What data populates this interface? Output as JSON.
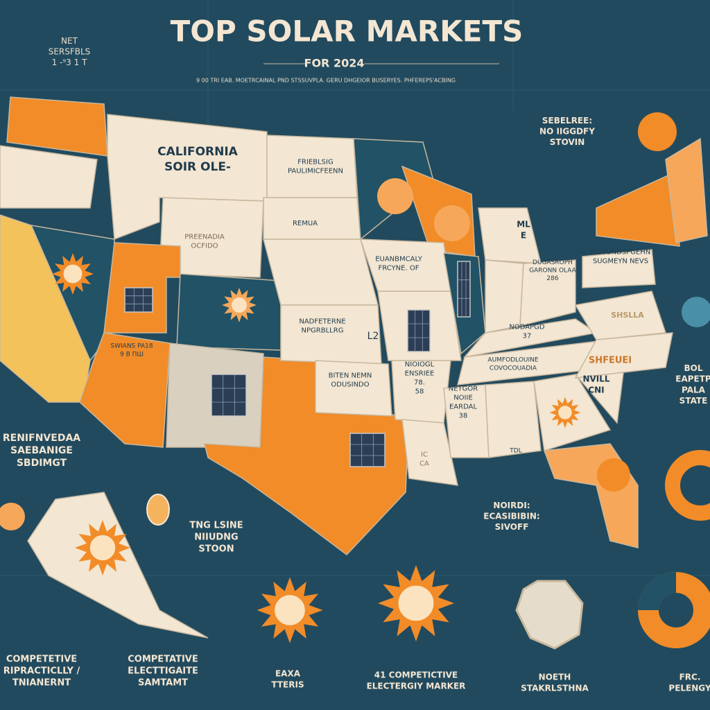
{
  "header": {
    "title": "TOP SOLAR MARKETS",
    "subtitle": "FOR 2024",
    "tagline": "9   00   TRI EAB. MOETRCAINAL PND STSSUVPLA. GERU DHGEIOR BUSERYES. PHFEREPS'ACBING"
  },
  "labels": [
    {
      "lines": [
        "NET",
        "SERSFBLS",
        "1 -⁹3 1 T"
      ]
    },
    {
      "lines": [
        "CALIFORNIA",
        "SOIR OLE-"
      ]
    },
    {
      "lines": [
        "FRIEBLSIG",
        "PAULIMICFEENN"
      ]
    },
    {
      "lines": [
        "REMUA"
      ]
    },
    {
      "lines": [
        "PREENADIA",
        "OCFIDO"
      ]
    },
    {
      "lines": [
        "EUANBMCALY",
        "FRCYNE. OF"
      ]
    },
    {
      "lines": [
        "ML",
        "E"
      ]
    },
    {
      "lines": [
        "DUGASROPH",
        "GARONN OLAA",
        "286"
      ]
    },
    {
      "lines": [
        "ROOUNDSPGEHN",
        "SUGMEYN NEVS"
      ]
    },
    {
      "lines": [
        "NODAPGD",
        "37"
      ]
    },
    {
      "lines": [
        "SHSLLA"
      ]
    },
    {
      "lines": [
        "AUMFODLOUINE",
        "COVOCOUADIA"
      ]
    },
    {
      "lines": [
        "SHFEUEI"
      ]
    },
    {
      "lines": [
        "NVILL",
        "CNI"
      ]
    },
    {
      "lines": [
        "NETGOR",
        "NOIIE",
        "EARDAL",
        "38"
      ]
    },
    {
      "lines": [
        "TDL"
      ]
    },
    {
      "lines": [
        "BITEN NEMN",
        "ODUSINDO"
      ]
    },
    {
      "lines": [
        "NIOIOGL",
        "ENSRIEE",
        "78.",
        "58"
      ]
    },
    {
      "lines": [
        "NADFETERNE",
        "NPGRBLLRG"
      ]
    },
    {
      "lines": [
        "L2"
      ]
    },
    {
      "lines": [
        "SWIANS PA18",
        "9 B ПШ"
      ]
    },
    {
      "lines": [
        "IC",
        "CA"
      ]
    },
    {
      "lines": [
        "SEBELREE:",
        "NO IIGGDFY",
        "STOVIN"
      ]
    },
    {
      "lines": [
        "BOL",
        "EAPETP",
        "PALA",
        "STATE"
      ]
    },
    {
      "lines": [
        "RENIFNVEDAA",
        "SAEBANIGE",
        "SBDIMGT"
      ]
    },
    {
      "lines": [
        "TNG LSINE",
        "NIIUDNG",
        "STOON"
      ]
    },
    {
      "lines": [
        "NOIRDI:",
        "ECASIBIBIN:",
        "SIVOFF"
      ]
    },
    {
      "lines": [
        "COMPETETIVE",
        "RIPRACTICLLY /",
        "TNIANERNT"
      ]
    },
    {
      "lines": [
        "COMPETATIVE",
        "ELECTTIGAITE",
        "SAMTAMT"
      ]
    },
    {
      "lines": [
        "EAXA",
        "TTERIS"
      ]
    },
    {
      "lines": [
        "41 COMPETICTIVE",
        "ELECTERGIY MARKER"
      ]
    },
    {
      "lines": [
        "NOETH",
        "STAKRLSTHNA"
      ]
    },
    {
      "lines": [
        "FRC.",
        "PELENGY"
      ]
    }
  ]
}
